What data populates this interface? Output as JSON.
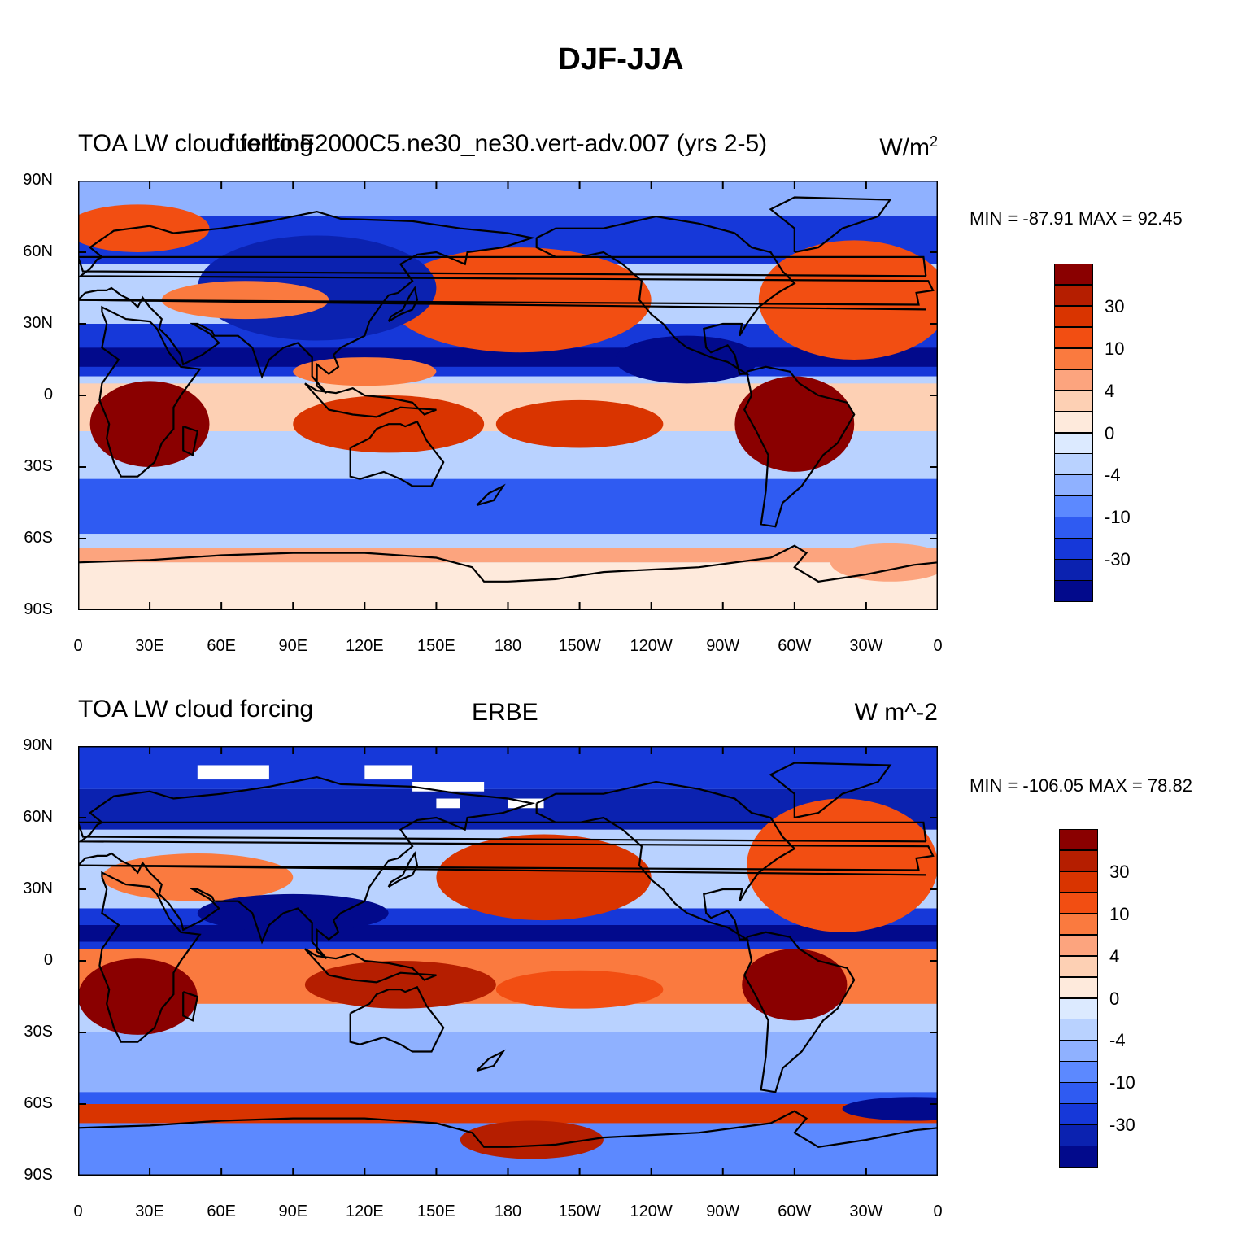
{
  "figure": {
    "title": "DJF-JJA"
  },
  "axes": {
    "lat_labels": [
      "90N",
      "60N",
      "30N",
      "0",
      "30S",
      "60S",
      "90S"
    ],
    "lon_labels": [
      "0",
      "30E",
      "60E",
      "90E",
      "120E",
      "150E",
      "180",
      "150W",
      "120W",
      "90W",
      "60W",
      "30W",
      "0"
    ]
  },
  "colorbar": {
    "labels": [
      "30",
      "10",
      "4",
      "0",
      "-4",
      "-10",
      "-30"
    ],
    "colors": [
      "#8a0000",
      "#b51e00",
      "#d93400",
      "#f24e12",
      "#fa7a3f",
      "#fca47e",
      "#fdd0b4",
      "#feeadc",
      "#dceaff",
      "#b9d2ff",
      "#8fb1ff",
      "#5c89ff",
      "#2f5bf2",
      "#1638d9",
      "#0b22b0",
      "#020a8c"
    ]
  },
  "panels": [
    {
      "left_label": "TOA LW cloud forcing",
      "center_label": "fuellfo.F2000C5.ne30_ne30.vert-adv.007 (yrs 2-5)",
      "units_base": "W/m",
      "units_sup": "2",
      "min_max": "MIN = -87.91 MAX =  92.45"
    },
    {
      "left_label": "TOA LW cloud forcing",
      "center_label": "ERBE",
      "units_base": "W m^-2",
      "units_sup": "",
      "min_max": "MIN = -106.05 MAX =  78.82"
    }
  ],
  "chart_data": [
    {
      "type": "heatmap",
      "title": "DJF-JJA",
      "subtitle": "TOA LW cloud forcing — fuellfo.F2000C5.ne30_ne30.vert-adv.007 (yrs 2-5)",
      "units": "W/m^2",
      "x_range": [
        0,
        360
      ],
      "y_range": [
        -90,
        90
      ],
      "x_ticks": [
        "0",
        "30E",
        "60E",
        "90E",
        "120E",
        "150E",
        "180",
        "150W",
        "120W",
        "90W",
        "60W",
        "30W",
        "0"
      ],
      "y_ticks": [
        "90N",
        "60N",
        "30N",
        "0",
        "30S",
        "60S",
        "90S"
      ],
      "colorbar_levels": [
        30,
        10,
        4,
        0,
        -4,
        -10,
        -30
      ],
      "min": -87.91,
      "max": 92.45
    },
    {
      "type": "heatmap",
      "title": "DJF-JJA",
      "subtitle": "TOA LW cloud forcing — ERBE",
      "units": "W m^-2",
      "x_range": [
        0,
        360
      ],
      "y_range": [
        -90,
        90
      ],
      "x_ticks": [
        "0",
        "30E",
        "60E",
        "90E",
        "120E",
        "150E",
        "180",
        "150W",
        "120W",
        "90W",
        "60W",
        "30W",
        "0"
      ],
      "y_ticks": [
        "90N",
        "60N",
        "30N",
        "0",
        "30S",
        "60S",
        "90S"
      ],
      "colorbar_levels": [
        30,
        10,
        4,
        0,
        -4,
        -10,
        -30
      ],
      "min": -106.05,
      "max": 78.82
    }
  ]
}
